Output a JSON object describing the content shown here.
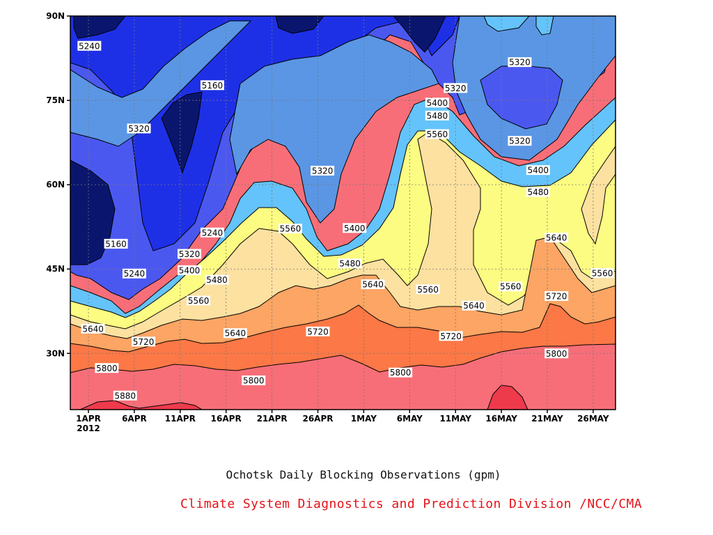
{
  "figure": {
    "title": "Ochotsk Daily Blocking Observations (gpm)",
    "credit": "Climate System Diagnostics and Prediction Division /NCC/CMA"
  },
  "chart_data": {
    "type": "heatmap",
    "title": "Ochotsk Daily Blocking Observations (gpm)",
    "xlabel": "",
    "ylabel": "",
    "x_ticks": [
      "1APR",
      "6APR",
      "11APR",
      "16APR",
      "21APR",
      "26APR",
      "1MAY",
      "6MAY",
      "11MAY",
      "16MAY",
      "21MAY",
      "26MAY"
    ],
    "x_year_label": "2012",
    "y_ticks": [
      "30N",
      "45N",
      "60N",
      "75N",
      "90N"
    ],
    "y_tick_values": [
      30,
      45,
      60,
      75,
      90
    ],
    "ylim": [
      20,
      90
    ],
    "xlim": [
      "1APR",
      "29MAY"
    ],
    "grid": "dotted",
    "contour_levels": [
      5160,
      5240,
      5320,
      5400,
      5480,
      5560,
      5640,
      5720,
      5800,
      5880
    ],
    "band_colors": [
      "#0a166e",
      "#1e30e6",
      "#4b58f0",
      "#5a96e4",
      "#64c3fa",
      "#fcfc82",
      "#fce1a0",
      "#fca564",
      "#fc7846",
      "#f76e78",
      "#ef3a4c"
    ],
    "contour_labels": [
      {
        "text": "5240",
        "day": 0.1,
        "lat": 84.7
      },
      {
        "text": "5160",
        "day": 13.5,
        "lat": 77.7
      },
      {
        "text": "5320",
        "day": 5.5,
        "lat": 70.0
      },
      {
        "text": "5320",
        "day": 25.5,
        "lat": 62.5
      },
      {
        "text": "5240",
        "day": 13.5,
        "lat": 51.5
      },
      {
        "text": "5160",
        "day": 3.0,
        "lat": 49.5
      },
      {
        "text": "5320",
        "day": 11.0,
        "lat": 47.7
      },
      {
        "text": "5240",
        "day": 5.0,
        "lat": 44.2
      },
      {
        "text": "5400",
        "day": 11.0,
        "lat": 44.8
      },
      {
        "text": "5480",
        "day": 14.0,
        "lat": 43.1
      },
      {
        "text": "5560",
        "day": 12.0,
        "lat": 39.4
      },
      {
        "text": "5640",
        "day": 0.5,
        "lat": 34.4
      },
      {
        "text": "5640",
        "day": 16.0,
        "lat": 33.6
      },
      {
        "text": "5720",
        "day": 6.0,
        "lat": 32.1
      },
      {
        "text": "5800",
        "day": 2.0,
        "lat": 27.4
      },
      {
        "text": "5880",
        "day": 4.0,
        "lat": 22.5
      },
      {
        "text": "5560",
        "day": 22.0,
        "lat": 52.2
      },
      {
        "text": "5720",
        "day": 25.0,
        "lat": 33.9
      },
      {
        "text": "5800",
        "day": 18.0,
        "lat": 25.2
      },
      {
        "text": "5400",
        "day": 29.0,
        "lat": 52.3
      },
      {
        "text": "5480",
        "day": 28.5,
        "lat": 46.0
      },
      {
        "text": "5640",
        "day": 31.0,
        "lat": 42.3
      },
      {
        "text": "5560",
        "day": 37.0,
        "lat": 41.4
      },
      {
        "text": "5800",
        "day": 34.0,
        "lat": 26.6
      },
      {
        "text": "5720",
        "day": 39.5,
        "lat": 33.1
      },
      {
        "text": "5640",
        "day": 42.0,
        "lat": 38.5
      },
      {
        "text": "5400",
        "day": 38.0,
        "lat": 74.6
      },
      {
        "text": "5480",
        "day": 38.0,
        "lat": 72.3
      },
      {
        "text": "5560",
        "day": 38.0,
        "lat": 69.0
      },
      {
        "text": "5320",
        "day": 40.0,
        "lat": 77.2
      },
      {
        "text": "5320",
        "day": 47.0,
        "lat": 81.8
      },
      {
        "text": "5320",
        "day": 47.0,
        "lat": 67.8
      },
      {
        "text": "5400",
        "day": 49.0,
        "lat": 62.6
      },
      {
        "text": "5480",
        "day": 49.0,
        "lat": 58.7
      },
      {
        "text": "5560",
        "day": 46.0,
        "lat": 41.9
      },
      {
        "text": "5640",
        "day": 51.0,
        "lat": 50.6
      },
      {
        "text": "5720",
        "day": 51.0,
        "lat": 40.2
      },
      {
        "text": "5800",
        "day": 51.0,
        "lat": 30.0
      },
      {
        "text": "5560",
        "day": 56.0,
        "lat": 44.3
      }
    ]
  }
}
